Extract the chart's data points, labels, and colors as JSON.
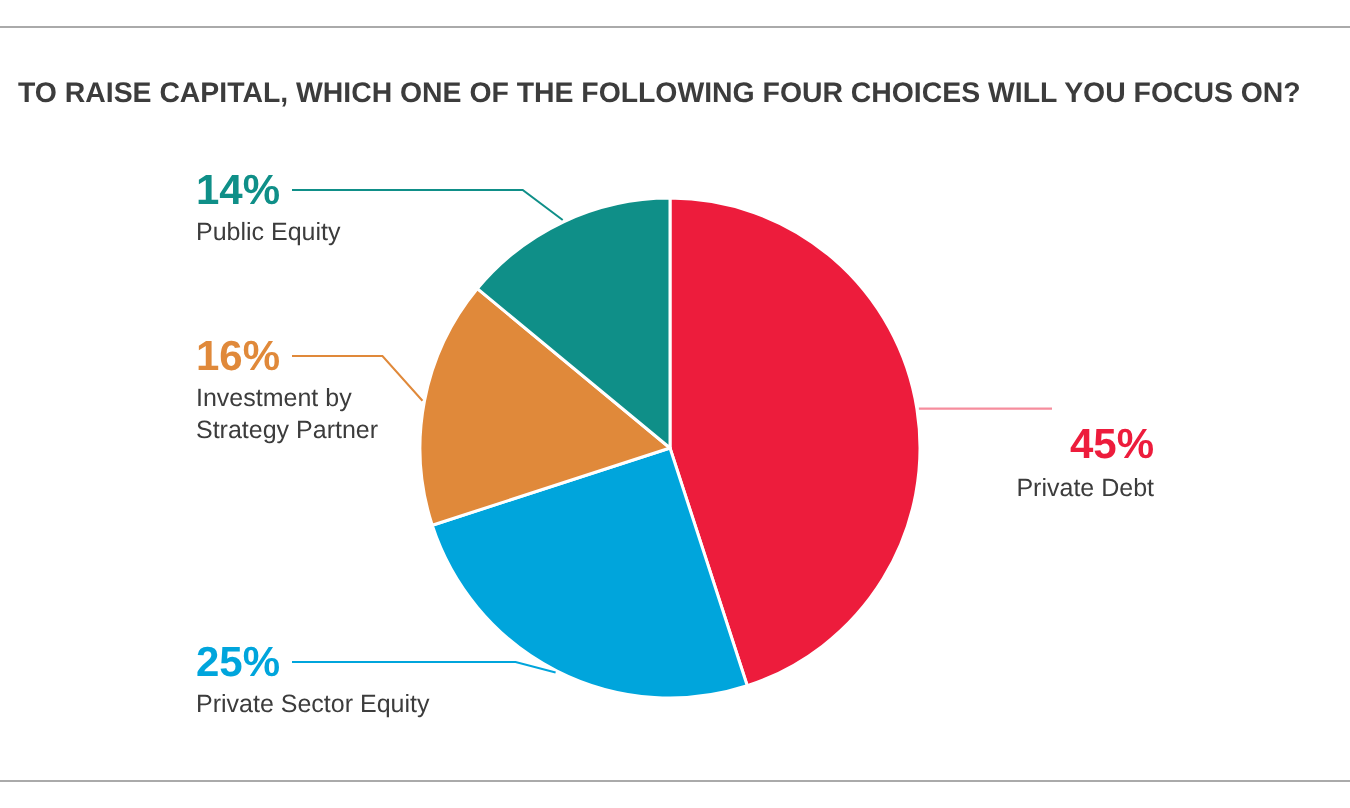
{
  "chart_data": {
    "type": "pie",
    "title": "TO RAISE CAPITAL, WHICH ONE OF THE FOLLOWING FOUR CHOICES WILL YOU FOCUS ON?",
    "categories": [
      "Private Debt",
      "Private Sector Equity",
      "Investment by Strategy Partner",
      "Public Equity"
    ],
    "values": [
      45,
      25,
      16,
      14
    ],
    "colors": [
      "#ed1c3c",
      "#00a5dc",
      "#e0893a",
      "#0f8f88"
    ],
    "value_labels": [
      "45%",
      "25%",
      "16%",
      "14%"
    ]
  }
}
